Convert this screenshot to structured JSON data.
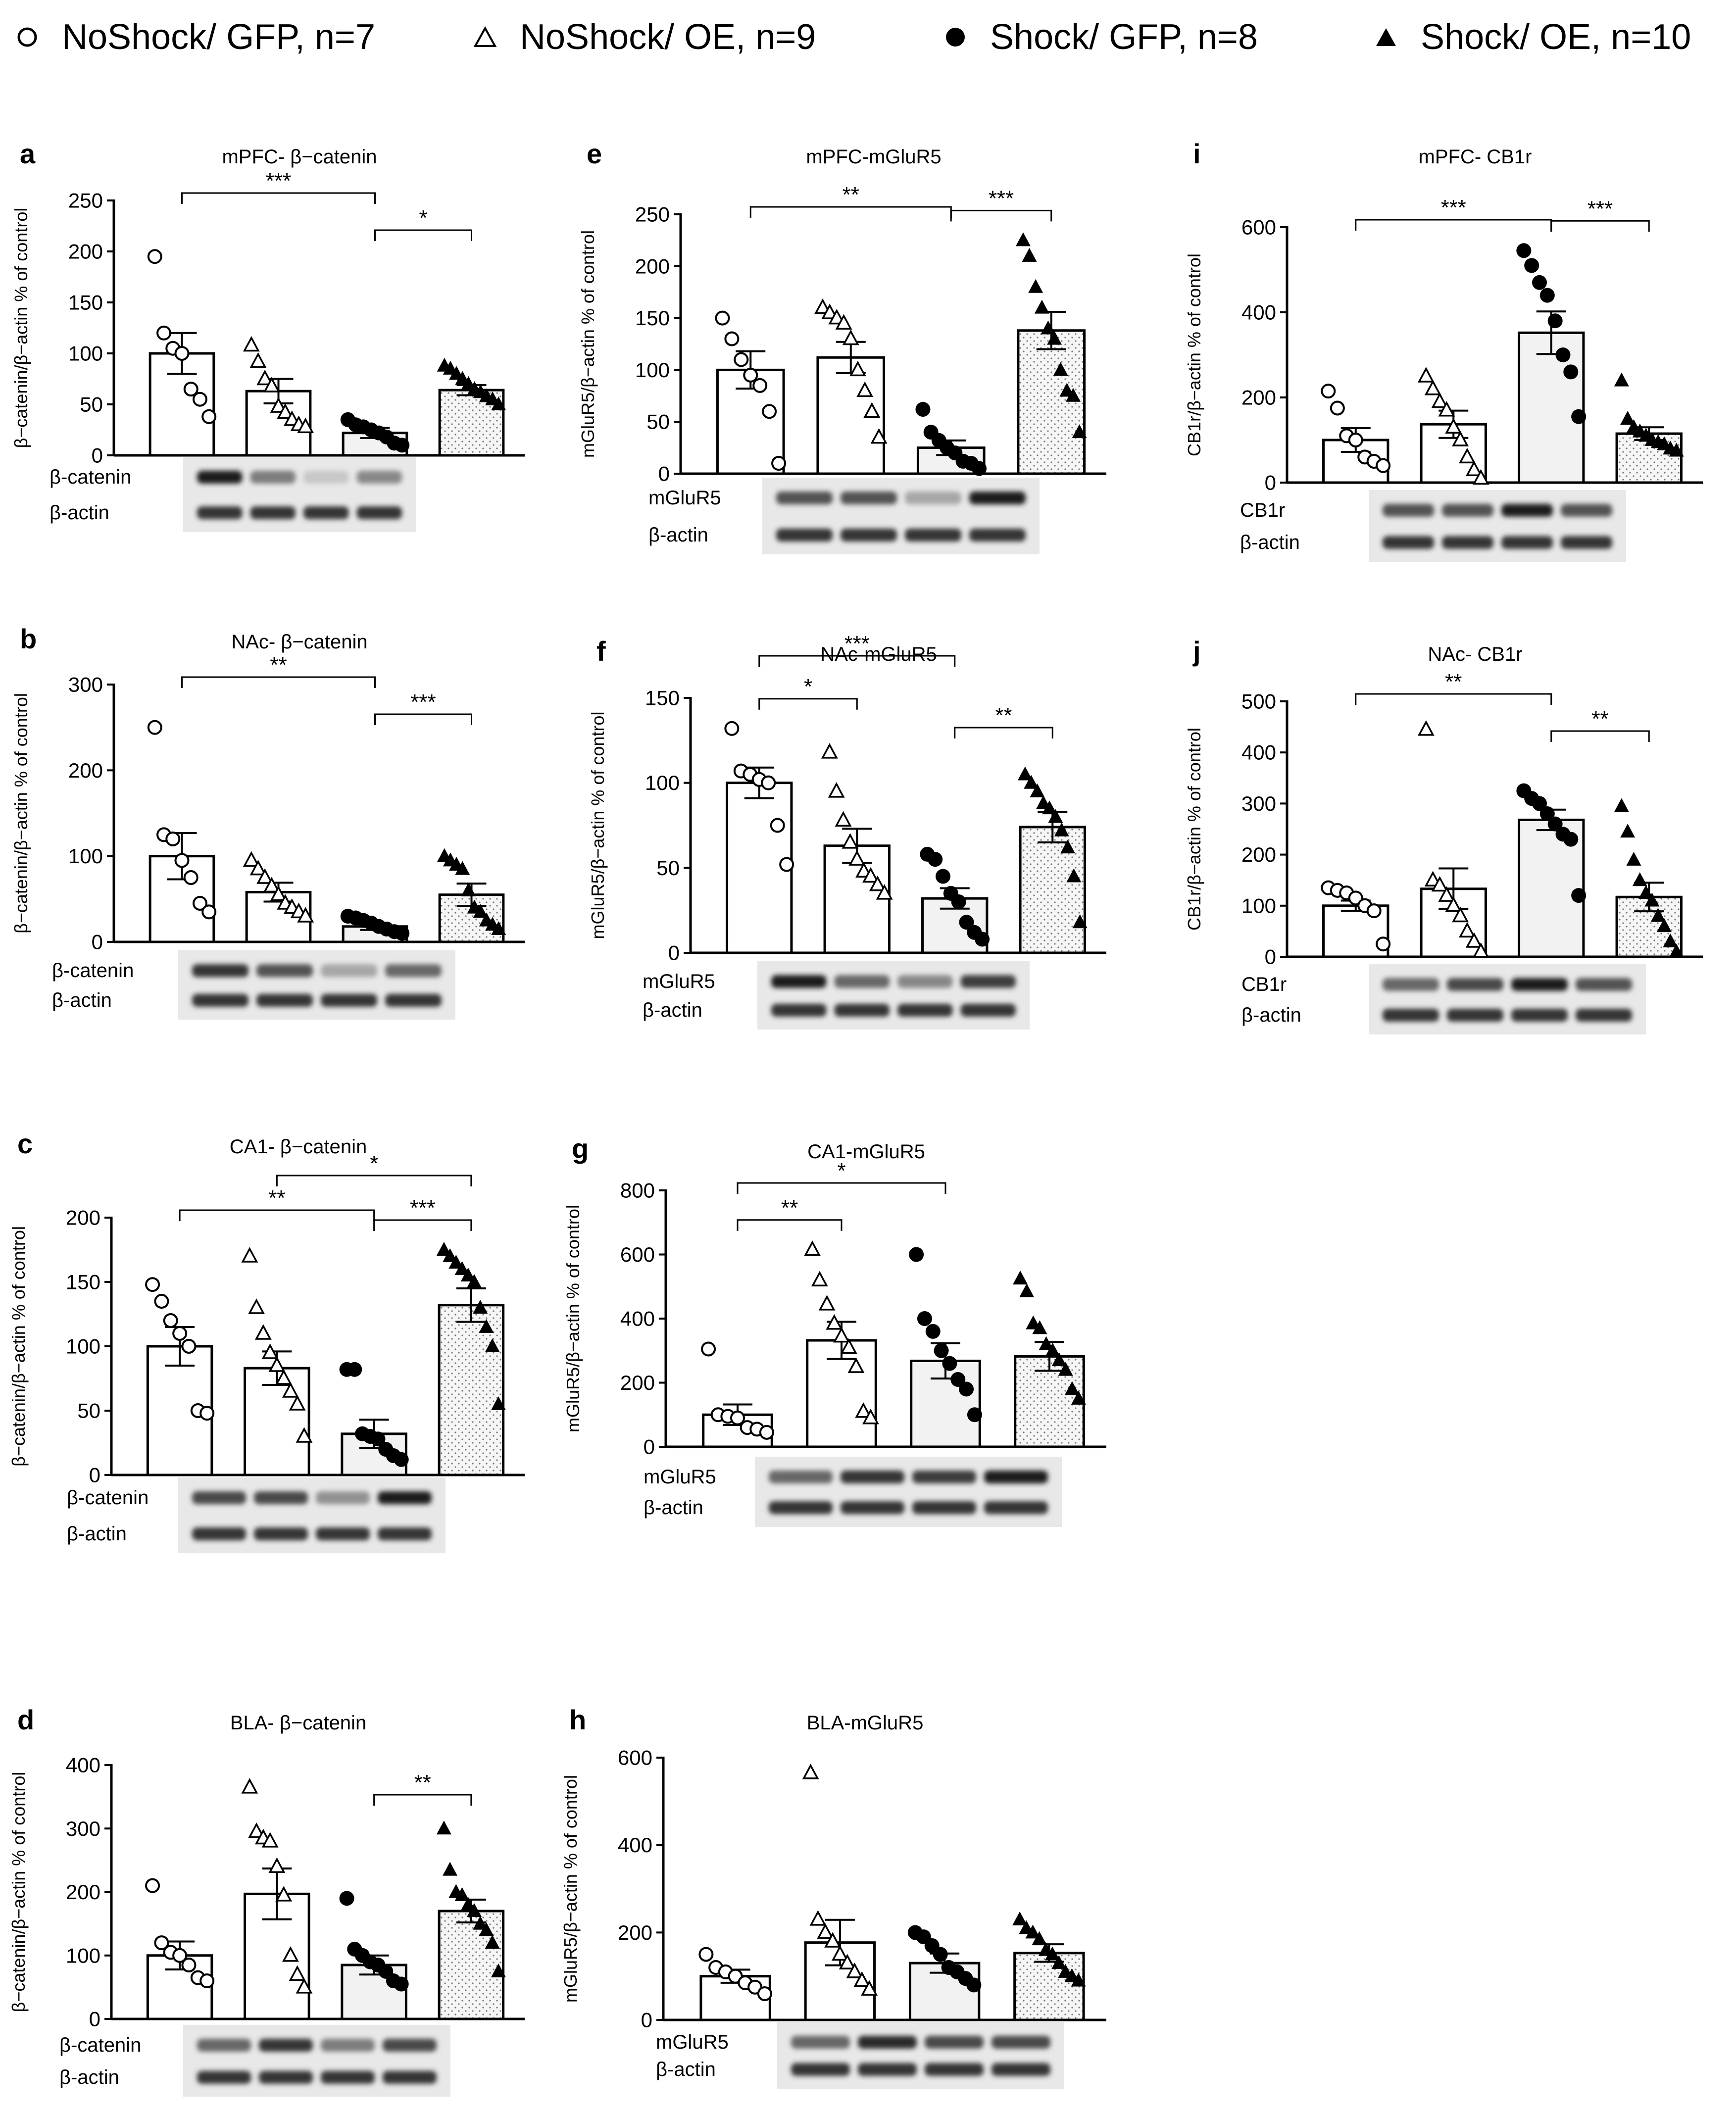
{
  "legend": [
    {
      "marker": "open-circle",
      "label": "NoShock/ GFP, n=7"
    },
    {
      "marker": "open-triangle",
      "label": "NoShock/ OE, n=9"
    },
    {
      "marker": "filled-circle",
      "label": "Shock/ GFP, n=8"
    },
    {
      "marker": "filled-triangle",
      "label": "Shock/ OE, n=10"
    }
  ],
  "colors": {
    "bar_outline": "#000000",
    "bar_fill_open": "#ffffff",
    "bar_fill_shock_gfp": "#f2f2f2",
    "bar_fill_stipple": "#9a9a9a",
    "blot_band": "#1a1a1a",
    "blot_bg": "#e8e8e8"
  },
  "chart_data": [
    {
      "panel": "a",
      "type": "bar",
      "title": "mPFC- β−catenin",
      "ylabel": "β−catenin/β−actin % of control",
      "ylim": [
        0,
        250
      ],
      "yticks": [
        0,
        50,
        100,
        150,
        200,
        250
      ],
      "categories": [
        "NoShock/ GFP",
        "NoShock/ OE",
        "Shock/ GFP",
        "Shock/ OE"
      ],
      "values": [
        100,
        63,
        22,
        64
      ],
      "sem": [
        20,
        12,
        5,
        5
      ],
      "points": [
        [
          195,
          120,
          105,
          100,
          65,
          55,
          38
        ],
        [
          108,
          92,
          75,
          68,
          48,
          42,
          35,
          30,
          28
        ],
        [
          35,
          30,
          28,
          25,
          22,
          18,
          12,
          10
        ],
        [
          88,
          85,
          80,
          75,
          70,
          65,
          62,
          58,
          55,
          50
        ]
      ],
      "significance": [
        {
          "from": 0,
          "to": 2,
          "label": "***"
        },
        {
          "from": 2,
          "to": 3,
          "label": "*"
        }
      ],
      "blot": {
        "labels": [
          "β-catenin",
          "β-actin"
        ],
        "intensity": [
          [
            0.95,
            0.5,
            0.15,
            0.45
          ],
          [
            0.85,
            0.85,
            0.85,
            0.85
          ]
        ]
      }
    },
    {
      "panel": "b",
      "type": "bar",
      "title": "NAc- β−catenin",
      "ylabel": "β−catenin/β−actin % of control",
      "ylim": [
        0,
        300
      ],
      "yticks": [
        0,
        100,
        200,
        300
      ],
      "categories": [
        "NoShock/ GFP",
        "NoShock/ OE",
        "Shock/ GFP",
        "Shock/ OE"
      ],
      "values": [
        100,
        58,
        18,
        55
      ],
      "sem": [
        27,
        11,
        4,
        13
      ],
      "points": [
        [
          250,
          125,
          120,
          95,
          75,
          45,
          35
        ],
        [
          95,
          85,
          75,
          65,
          55,
          45,
          40,
          35,
          30
        ],
        [
          30,
          28,
          25,
          22,
          18,
          15,
          12,
          10
        ],
        [
          100,
          95,
          90,
          85,
          60,
          40,
          35,
          25,
          20,
          15
        ]
      ],
      "significance": [
        {
          "from": 0,
          "to": 2,
          "label": "**"
        },
        {
          "from": 2,
          "to": 3,
          "label": "***"
        }
      ],
      "blot": {
        "labels": [
          "β-catenin",
          "β-actin"
        ],
        "intensity": [
          [
            0.85,
            0.7,
            0.3,
            0.6
          ],
          [
            0.85,
            0.85,
            0.85,
            0.85
          ]
        ]
      }
    },
    {
      "panel": "c",
      "type": "bar",
      "title": "CA1- β−catenin",
      "ylabel": "β−catenin/β−actin % of control",
      "ylim": [
        0,
        200
      ],
      "yticks": [
        0,
        50,
        100,
        150,
        200
      ],
      "categories": [
        "NoShock/ GFP",
        "NoShock/ OE",
        "Shock/ GFP",
        "Shock/ OE"
      ],
      "values": [
        100,
        83,
        32,
        132
      ],
      "sem": [
        15,
        13,
        11,
        13
      ],
      "points": [
        [
          148,
          135,
          120,
          110,
          100,
          50,
          48
        ],
        [
          170,
          130,
          110,
          95,
          85,
          75,
          65,
          55,
          30
        ],
        [
          82,
          82,
          32,
          30,
          28,
          20,
          15,
          12
        ],
        [
          175,
          170,
          165,
          160,
          155,
          150,
          130,
          115,
          100,
          55
        ]
      ],
      "significance": [
        {
          "from": 0,
          "to": 2,
          "label": "**"
        },
        {
          "from": 2,
          "to": 3,
          "label": "***"
        },
        {
          "from": 1,
          "to": 3,
          "label": "*"
        }
      ],
      "blot": {
        "labels": [
          "β-catenin",
          "β-actin"
        ],
        "intensity": [
          [
            0.75,
            0.75,
            0.4,
            0.95
          ],
          [
            0.85,
            0.85,
            0.85,
            0.85
          ]
        ]
      }
    },
    {
      "panel": "d",
      "type": "bar",
      "title": "BLA- β−catenin",
      "ylabel": "β−catenin/β−actin % of control",
      "ylim": [
        0,
        400
      ],
      "yticks": [
        0,
        100,
        200,
        300,
        400
      ],
      "categories": [
        "NoShock/ GFP",
        "NoShock/ OE",
        "Shock/ GFP",
        "Shock/ OE"
      ],
      "values": [
        100,
        197,
        85,
        170
      ],
      "sem": [
        22,
        40,
        15,
        18
      ],
      "points": [
        [
          210,
          120,
          105,
          100,
          85,
          65,
          60
        ],
        [
          365,
          295,
          285,
          280,
          240,
          195,
          100,
          70,
          50
        ],
        [
          190,
          110,
          100,
          90,
          85,
          75,
          60,
          55
        ],
        [
          300,
          235,
          200,
          195,
          180,
          170,
          150,
          140,
          120,
          75
        ]
      ],
      "significance": [
        {
          "from": 2,
          "to": 3,
          "label": "**"
        }
      ],
      "blot": {
        "labels": [
          "β-catenin",
          "β-actin"
        ],
        "intensity": [
          [
            0.6,
            0.85,
            0.5,
            0.75
          ],
          [
            0.85,
            0.85,
            0.85,
            0.85
          ]
        ]
      }
    },
    {
      "panel": "e",
      "type": "bar",
      "title": "mPFC-mGluR5",
      "ylabel": "mGluR5/β−actin % of control",
      "ylim": [
        0,
        250
      ],
      "yticks": [
        0,
        50,
        100,
        150,
        200,
        250
      ],
      "categories": [
        "NoShock/ GFP",
        "NoShock/ OE",
        "Shock/ GFP",
        "Shock/ OE"
      ],
      "values": [
        100,
        112,
        25,
        138
      ],
      "sem": [
        18,
        15,
        7,
        18
      ],
      "points": [
        [
          150,
          130,
          110,
          95,
          85,
          60,
          10
        ],
        [
          160,
          155,
          150,
          145,
          130,
          100,
          80,
          60,
          35
        ],
        [
          62,
          40,
          32,
          25,
          20,
          12,
          10,
          5
        ],
        [
          225,
          210,
          180,
          160,
          140,
          130,
          100,
          80,
          75,
          40
        ]
      ],
      "significance": [
        {
          "from": 0,
          "to": 2,
          "label": "**"
        },
        {
          "from": 2,
          "to": 3,
          "label": "***"
        }
      ],
      "blot": {
        "labels": [
          "mGluR5",
          "β-actin"
        ],
        "intensity": [
          [
            0.7,
            0.7,
            0.3,
            0.95
          ],
          [
            0.85,
            0.85,
            0.85,
            0.85
          ]
        ]
      }
    },
    {
      "panel": "f",
      "type": "bar",
      "title": "NAc-mGluR5",
      "ylabel": "mGluR5/β−actin % of control",
      "ylim": [
        0,
        150
      ],
      "yticks": [
        0,
        50,
        100,
        150
      ],
      "categories": [
        "NoShock/ GFP",
        "NoShock/ OE",
        "Shock/ GFP",
        "Shock/ OE"
      ],
      "values": [
        100,
        63,
        32,
        74
      ],
      "sem": [
        9,
        10,
        6,
        9
      ],
      "points": [
        [
          132,
          107,
          105,
          102,
          100,
          75,
          52
        ],
        [
          118,
          95,
          78,
          65,
          55,
          48,
          45,
          40,
          35
        ],
        [
          58,
          55,
          45,
          35,
          30,
          18,
          12,
          8
        ],
        [
          105,
          100,
          95,
          88,
          85,
          80,
          72,
          62,
          45,
          18
        ]
      ],
      "significance": [
        {
          "from": 0,
          "to": 1,
          "label": "*"
        },
        {
          "from": 0,
          "to": 2,
          "label": "***"
        },
        {
          "from": 2,
          "to": 3,
          "label": "**"
        }
      ],
      "blot": {
        "labels": [
          "mGluR5",
          "β-actin"
        ],
        "intensity": [
          [
            0.95,
            0.6,
            0.45,
            0.8
          ],
          [
            0.85,
            0.85,
            0.85,
            0.85
          ]
        ]
      }
    },
    {
      "panel": "g",
      "type": "bar",
      "title": "CA1-mGluR5",
      "ylabel": "mGluR5/β−actin % of control",
      "ylim": [
        0,
        800
      ],
      "yticks": [
        0,
        200,
        400,
        600,
        800
      ],
      "categories": [
        "NoShock/ GFP",
        "NoShock/ OE",
        "Shock/ GFP",
        "Shock/ OE"
      ],
      "values": [
        100,
        332,
        268,
        282
      ],
      "sem": [
        32,
        58,
        55,
        45
      ],
      "points": [
        [
          305,
          100,
          95,
          90,
          60,
          55,
          45
        ],
        [
          615,
          520,
          445,
          385,
          345,
          310,
          250,
          110,
          90
        ],
        [
          600,
          400,
          360,
          300,
          260,
          210,
          180,
          100
        ],
        [
          525,
          485,
          385,
          370,
          320,
          300,
          270,
          240,
          180,
          150
        ]
      ],
      "significance": [
        {
          "from": 0,
          "to": 1,
          "label": "**"
        },
        {
          "from": 0,
          "to": 2,
          "label": "*"
        }
      ],
      "blot": {
        "labels": [
          "mGluR5",
          "β-actin"
        ],
        "intensity": [
          [
            0.6,
            0.85,
            0.8,
            0.95
          ],
          [
            0.85,
            0.85,
            0.85,
            0.85
          ]
        ]
      }
    },
    {
      "panel": "h",
      "type": "bar",
      "title": "BLA-mGluR5",
      "ylabel": "mGluR5/β−actin % of control",
      "ylim": [
        0,
        600
      ],
      "yticks": [
        0,
        200,
        400,
        600
      ],
      "categories": [
        "NoShock/ GFP",
        "NoShock/ OE",
        "Shock/ GFP",
        "Shock/ OE"
      ],
      "values": [
        100,
        177,
        130,
        153
      ],
      "sem": [
        15,
        52,
        22,
        20
      ],
      "points": [
        [
          150,
          120,
          110,
          100,
          85,
          75,
          60
        ],
        [
          565,
          230,
          200,
          180,
          150,
          130,
          110,
          90,
          70
        ],
        [
          200,
          190,
          170,
          150,
          120,
          110,
          95,
          80
        ],
        [
          230,
          210,
          200,
          185,
          160,
          150,
          130,
          110,
          100,
          90
        ]
      ],
      "significance": [],
      "blot": {
        "labels": [
          "mGluR5",
          "β-actin"
        ],
        "intensity": [
          [
            0.6,
            0.9,
            0.75,
            0.75
          ],
          [
            0.85,
            0.85,
            0.85,
            0.85
          ]
        ]
      }
    },
    {
      "panel": "i",
      "type": "bar",
      "title": "mPFC- CB1r",
      "ylabel": "CB1r/β−actin % of control",
      "ylim": [
        0,
        600
      ],
      "yticks": [
        0,
        200,
        400,
        600
      ],
      "categories": [
        "NoShock/ GFP",
        "NoShock/ OE",
        "Shock/ GFP",
        "Shock/ OE"
      ],
      "values": [
        100,
        137,
        352,
        115
      ],
      "sem": [
        28,
        32,
        50,
        15
      ],
      "points": [
        [
          215,
          175,
          110,
          100,
          60,
          50,
          40
        ],
        [
          250,
          220,
          190,
          170,
          130,
          100,
          60,
          30,
          10
        ],
        [
          545,
          510,
          470,
          440,
          380,
          300,
          260,
          155
        ],
        [
          240,
          150,
          130,
          120,
          110,
          100,
          95,
          90,
          80,
          75
        ]
      ],
      "significance": [
        {
          "from": 0,
          "to": 2,
          "label": "***"
        },
        {
          "from": 2,
          "to": 3,
          "label": "***"
        }
      ],
      "blot": {
        "labels": [
          "CB1r",
          "β-actin"
        ],
        "intensity": [
          [
            0.7,
            0.7,
            0.95,
            0.7
          ],
          [
            0.85,
            0.85,
            0.85,
            0.85
          ]
        ]
      }
    },
    {
      "panel": "j",
      "type": "bar",
      "title": "NAc- CB1r",
      "ylabel": "CB1r/β−actin % of control",
      "ylim": [
        0,
        500
      ],
      "yticks": [
        0,
        100,
        200,
        300,
        400,
        500
      ],
      "categories": [
        "NoShock/ GFP",
        "NoShock/ OE",
        "Shock/ GFP",
        "Shock/ OE"
      ],
      "values": [
        100,
        133,
        268,
        117
      ],
      "sem": [
        10,
        40,
        20,
        28
      ],
      "points": [
        [
          135,
          130,
          125,
          115,
          100,
          90,
          25
        ],
        [
          445,
          150,
          140,
          120,
          100,
          80,
          50,
          30,
          10
        ],
        [
          325,
          310,
          300,
          280,
          260,
          240,
          230,
          120
        ],
        [
          295,
          245,
          190,
          150,
          125,
          110,
          80,
          60,
          30,
          10
        ]
      ],
      "significance": [
        {
          "from": 0,
          "to": 2,
          "label": "**"
        },
        {
          "from": 2,
          "to": 3,
          "label": "**"
        }
      ],
      "blot": {
        "labels": [
          "CB1r",
          "β-actin"
        ],
        "intensity": [
          [
            0.6,
            0.75,
            0.95,
            0.7
          ],
          [
            0.85,
            0.85,
            0.85,
            0.85
          ]
        ]
      }
    }
  ]
}
